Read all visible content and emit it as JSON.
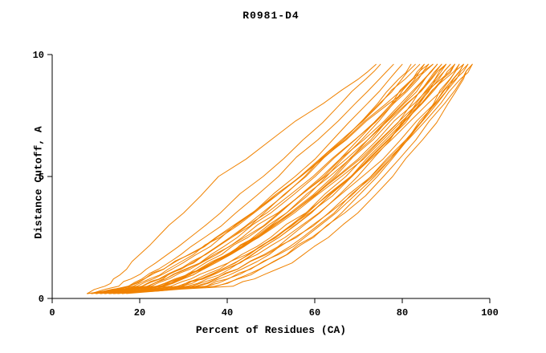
{
  "chart_data": {
    "type": "line",
    "title": "R0981-D4",
    "xlabel": "Percent of Residues (CA)",
    "ylabel": "Distance Cutoff, A",
    "xlim": [
      0,
      100
    ],
    "ylim": [
      0,
      10
    ],
    "x_ticks": [
      0,
      20,
      40,
      60,
      80,
      100
    ],
    "y_ticks": [
      0,
      5,
      10
    ],
    "grid": false,
    "legend": "none",
    "line_color": "#f08200",
    "axis_color": "#000000",
    "y_samples": [
      0.2,
      0.5,
      0.8,
      1.2,
      1.8,
      2.5,
      3.5,
      5,
      6.5,
      8,
      9,
      9.6
    ],
    "series": [
      {
        "x": [
          9,
          24.6,
          29.1,
          34.2,
          40.4,
          46.7,
          54.3,
          64.2,
          72.8,
          80.5,
          85.2,
          88
        ]
      },
      {
        "x": [
          12,
          29.8,
          34.5,
          39.6,
          45.8,
          51.8,
          59.1,
          68.3,
          76.2,
          83.2,
          87.5,
          90
        ]
      },
      {
        "x": [
          10,
          23.9,
          28.5,
          33.5,
          40,
          46.6,
          54.8,
          65.4,
          74.9,
          83.6,
          88.9,
          92
        ]
      },
      {
        "x": [
          14,
          35.2,
          40.2,
          45.4,
          51.7,
          57.7,
          64.8,
          73.7,
          81.1,
          87.7,
          91.7,
          94
        ]
      },
      {
        "x": [
          11,
          22,
          25.9,
          30.4,
          36.3,
          42.3,
          49.9,
          60.1,
          69.2,
          77.7,
          82.9,
          86
        ]
      },
      {
        "x": [
          9,
          18.5,
          22.2,
          26.5,
          32.3,
          38.3,
          46.1,
          56.6,
          66.1,
          75.1,
          80.7,
          84
        ]
      },
      {
        "x": [
          13,
          28.6,
          33.1,
          38.2,
          44.4,
          50.7,
          58.3,
          68.2,
          76.8,
          84.5,
          89.2,
          92
        ]
      },
      {
        "x": [
          10,
          21.8,
          25.9,
          30.7,
          37,
          43.4,
          51.5,
          62.4,
          72.1,
          81.1,
          86.7,
          90
        ]
      },
      {
        "x": [
          15,
          33.2,
          38.1,
          43.3,
          49.6,
          55.8,
          63.3,
          72.8,
          80.8,
          88,
          92.4,
          95
        ]
      },
      {
        "x": [
          8,
          20.6,
          24.7,
          29.2,
          35.1,
          41,
          48.4,
          58,
          66.5,
          74.4,
          79.2,
          82
        ]
      },
      {
        "x": [
          12,
          24.9,
          29.1,
          33.8,
          39.8,
          45.9,
          53.5,
          63.4,
          72.1,
          80.2,
          85.1,
          88
        ]
      },
      {
        "x": [
          16,
          37.2,
          42.2,
          47.4,
          53.7,
          59.7,
          66.8,
          75.7,
          83.1,
          89.7,
          93.7,
          96
        ]
      },
      {
        "x": [
          10,
          17.4,
          20.5,
          24.3,
          29.4,
          34.8,
          41.9,
          51.7,
          60.7,
          69.3,
          74.8,
          78
        ]
      },
      {
        "x": [
          9,
          15.2,
          18,
          21.5,
          26.3,
          31.5,
          38.4,
          48.2,
          57.3,
          66,
          71.7,
          75
        ]
      },
      {
        "x": [
          8,
          12,
          14,
          17,
          20,
          24,
          30,
          38,
          50,
          62,
          70,
          74
        ]
      },
      {
        "x": [
          11,
          25.4,
          29.7,
          34.6,
          40.8,
          47,
          54.7,
          64.7,
          73.3,
          81.3,
          86.2,
          89
        ]
      },
      {
        "x": [
          13,
          29.8,
          34.5,
          39.5,
          45.7,
          51.8,
          59.2,
          68.5,
          76.7,
          84,
          88.4,
          91
        ]
      },
      {
        "x": [
          12,
          25,
          29.3,
          34.4,
          40.7,
          47.2,
          55.3,
          66.1,
          75.6,
          84.4,
          89.8,
          93
        ]
      },
      {
        "x": [
          14,
          32.7,
          37.4,
          42.3,
          48.4,
          54.1,
          61.1,
          69.8,
          77.2,
          83.7,
          87.6,
          90
        ]
      },
      {
        "x": [
          10,
          20.5,
          24.4,
          28.9,
          34.9,
          41,
          49,
          59.6,
          69.1,
          78.1,
          83.7,
          87
        ]
      },
      {
        "x": [
          15,
          37.5,
          42.5,
          47.6,
          53.6,
          59.3,
          66.1,
          74.3,
          81.2,
          87.2,
          90.9,
          93
        ]
      },
      {
        "x": [
          8,
          17.3,
          21,
          25.5,
          31.4,
          37.6,
          45.8,
          56.8,
          66.9,
          76.4,
          82.5,
          86
        ]
      },
      {
        "x": [
          12,
          27.1,
          31.7,
          36.8,
          43.3,
          49.9,
          57.9,
          68.4,
          77.5,
          85.9,
          91,
          94
        ]
      },
      {
        "x": [
          11,
          25.6,
          29.9,
          34.6,
          40.5,
          46.3,
          53.5,
          62.7,
          70.7,
          78,
          82.4,
          85
        ]
      },
      {
        "x": [
          13,
          31.9,
          37,
          42.4,
          48.9,
          55.3,
          63.1,
          72.9,
          81.3,
          88.8,
          93.3,
          96
        ]
      },
      {
        "x": [
          9,
          19.4,
          23.1,
          27.4,
          32.9,
          38.6,
          45.8,
          55.5,
          64.1,
          72.1,
          77.1,
          80
        ]
      },
      {
        "x": [
          14,
          29.4,
          33.9,
          38.9,
          45,
          51.2,
          58.8,
          68.5,
          76.9,
          84.6,
          89.3,
          92
        ]
      },
      {
        "x": [
          10,
          22.6,
          26.7,
          31.5,
          37.6,
          43.9,
          51.7,
          62.1,
          71.2,
          79.7,
          85,
          88
        ]
      },
      {
        "x": [
          16,
          35.2,
          40,
          45.1,
          51.3,
          57.2,
          64.4,
          73.3,
          80.8,
          87.5,
          91.6,
          94
        ]
      },
      {
        "x": [
          11,
          24.6,
          29,
          34,
          40.3,
          46.7,
          54.7,
          65.1,
          74.3,
          82.8,
          88,
          91
        ]
      },
      {
        "x": [
          12,
          21.7,
          25.3,
          29.5,
          34.9,
          40.6,
          47.9,
          57.7,
          66.5,
          74.8,
          79.9,
          83
        ]
      },
      {
        "x": [
          13,
          29.4,
          33.9,
          38.8,
          44.8,
          50.8,
          58,
          67.1,
          75.1,
          82.2,
          86.5,
          89
        ]
      },
      {
        "x": [
          15,
          30.8,
          35.4,
          40.5,
          46.8,
          53.2,
          60.9,
          70.9,
          79.6,
          87.4,
          92.2,
          95
        ]
      },
      {
        "x": [
          9,
          17.5,
          21.1,
          25.4,
          31.2,
          37.4,
          45.6,
          56.8,
          67.2,
          77,
          83.3,
          87
        ]
      },
      {
        "x": [
          17,
          41.3,
          46.2,
          51.4,
          57.4,
          63.1,
          69.8,
          77.8,
          84.6,
          90.5,
          94,
          96
        ]
      },
      {
        "x": [
          10,
          23.8,
          28,
          32.7,
          38.7,
          44.7,
          52,
          61.6,
          69.9,
          77.6,
          82.3,
          85
        ]
      }
    ]
  }
}
